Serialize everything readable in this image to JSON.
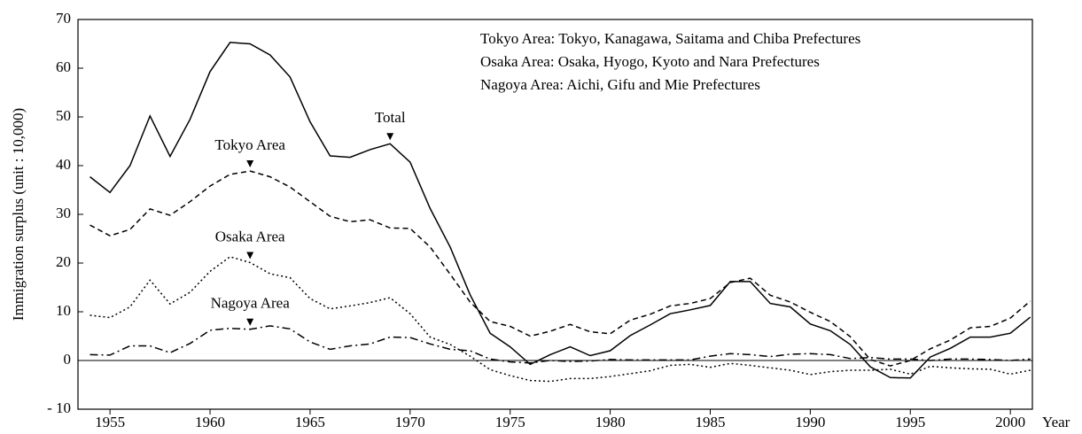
{
  "chart_data": {
    "type": "line",
    "ylabel": "Immigration surplus (unit : 10,000)",
    "xlabel": "Year",
    "notes": [
      "Tokyo Area: Tokyo, Kanagawa, Saitama and Chiba Prefectures",
      "Osaka Area: Osaka, Hyogo, Kyoto and Nara Prefectures",
      "Nagoya Area: Aichi, Gifu and Mie Prefectures"
    ],
    "x": [
      1954,
      1955,
      1956,
      1957,
      1958,
      1959,
      1960,
      1961,
      1962,
      1963,
      1964,
      1965,
      1966,
      1967,
      1968,
      1969,
      1970,
      1971,
      1972,
      1973,
      1974,
      1975,
      1976,
      1977,
      1978,
      1979,
      1980,
      1981,
      1982,
      1983,
      1984,
      1985,
      1986,
      1987,
      1988,
      1989,
      1990,
      1991,
      1992,
      1993,
      1994,
      1995,
      1996,
      1997,
      1998,
      1999,
      2000,
      2001
    ],
    "series": [
      {
        "name": "Total",
        "color": "#000000",
        "style": "solid",
        "values": [
          37.7,
          34.5,
          40,
          50.2,
          41.9,
          49.5,
          59.3,
          65.3,
          65,
          62.7,
          58.2,
          49,
          42,
          41.7,
          43.3,
          44.5,
          40.7,
          31.2,
          23.3,
          13.5,
          5.6,
          2.8,
          -0.8,
          1.2,
          2.8,
          1,
          2,
          5.1,
          7.3,
          9.6,
          10.4,
          11.3,
          16.2,
          16.2,
          11.7,
          11,
          7.5,
          6.1,
          3.3,
          -1.3,
          -3.5,
          -3.6,
          0.7,
          2.5,
          4.8,
          4.8,
          5.6,
          8.9
        ]
      },
      {
        "name": "Tokyo Area",
        "color": "#000000",
        "style": "dashed",
        "values": [
          27.8,
          25.6,
          26.9,
          31.1,
          29.8,
          32.6,
          35.8,
          38.2,
          38.9,
          37.7,
          35.6,
          32.6,
          29.6,
          28.5,
          28.9,
          27.2,
          27.1,
          23.3,
          17.7,
          12,
          8,
          7,
          5,
          6,
          7.4,
          5.9,
          5.5,
          8.3,
          9.5,
          11.2,
          11.7,
          12.7,
          16,
          16.9,
          13.4,
          12,
          9.9,
          8,
          4.9,
          0.2,
          -1.1,
          0,
          2.4,
          4.2,
          6.7,
          7,
          8.7,
          12.2
        ]
      },
      {
        "name": "Osaka Area",
        "color": "#000000",
        "style": "dotted",
        "values": [
          9.3,
          8.8,
          11,
          16.5,
          11.6,
          14,
          18.3,
          21.3,
          20.1,
          17.8,
          17,
          12.7,
          10.6,
          11.2,
          11.9,
          12.9,
          9.6,
          4.8,
          3.3,
          0.9,
          -1.9,
          -3.1,
          -4.1,
          -4.3,
          -3.7,
          -3.7,
          -3.3,
          -2.7,
          -2.1,
          -1,
          -0.8,
          -1.4,
          -0.6,
          -1,
          -1.5,
          -2,
          -2.9,
          -2.3,
          -2,
          -2,
          -1.8,
          -2.8,
          -1.2,
          -1.5,
          -1.7,
          -1.8,
          -2.8,
          -2
        ]
      },
      {
        "name": "Nagoya Area",
        "color": "#000000",
        "style": "dashdot",
        "values": [
          1.2,
          1.1,
          3,
          3,
          1.6,
          3.5,
          6.2,
          6.6,
          6.4,
          7.1,
          6.5,
          3.8,
          2.3,
          3,
          3.4,
          4.8,
          4.7,
          3.4,
          2.3,
          2,
          0.3,
          -0.3,
          -0.5,
          0,
          -0.2,
          -0.1,
          0.2,
          0.1,
          0.1,
          0.1,
          0.1,
          0.9,
          1.4,
          1.2,
          0.8,
          1.3,
          1.4,
          1.2,
          0.4,
          0.6,
          0.3,
          0.3,
          0,
          0.3,
          0.3,
          0.2,
          0,
          0.3
        ]
      }
    ],
    "xlim": [
      1953.4,
      2001.1
    ],
    "xticks": [
      1955,
      1960,
      1965,
      1970,
      1975,
      1980,
      1985,
      1990,
      1995,
      2000
    ],
    "ylim": [
      -10,
      70
    ],
    "yticks": [
      {
        "value": -10,
        "label": "- 10"
      },
      0,
      10,
      20,
      30,
      40,
      50,
      60,
      70
    ]
  }
}
